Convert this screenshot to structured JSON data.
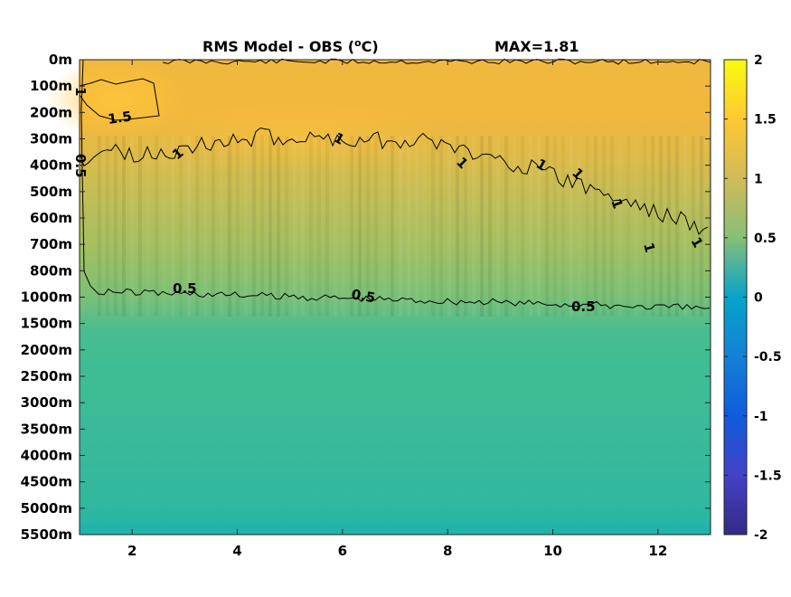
{
  "chart_data": {
    "type": "heatmap",
    "title": "RMS Model - OBS (",
    "title_degree": "o",
    "title_unit": "C)",
    "max_label": "MAX=1.81",
    "xlabel": "",
    "ylabel": "",
    "x_ticks": [
      "2",
      "4",
      "6",
      "8",
      "10",
      "12"
    ],
    "x_tick_values": [
      2,
      4,
      6,
      8,
      10,
      12
    ],
    "xlim": [
      1,
      13
    ],
    "y_ticks": [
      "0m",
      "100m",
      "200m",
      "300m",
      "400m",
      "500m",
      "600m",
      "700m",
      "800m",
      "1000m",
      "1500m",
      "2000m",
      "2500m",
      "3000m",
      "3500m",
      "4000m",
      "4500m",
      "5000m",
      "5500m"
    ],
    "colorbar": {
      "ticks": [
        "2",
        "1.5",
        "1",
        "0.5",
        "0",
        "-0.5",
        "-1",
        "-1.5",
        "-2"
      ],
      "tick_values": [
        2,
        1.5,
        1,
        0.5,
        0,
        -0.5,
        -1,
        -1.5,
        -2
      ],
      "range": [
        -2,
        2
      ],
      "colormap": "parula",
      "colors": [
        "#352a87",
        "#0f5cdd",
        "#1481d6",
        "#06a4ca",
        "#2eb7a4",
        "#87bf77",
        "#d1bb59",
        "#fec832",
        "#f9fb0e"
      ]
    },
    "depth_profile": [
      {
        "depth": "0m",
        "rms": 1.3
      },
      {
        "depth": "100m",
        "rms": 1.4
      },
      {
        "depth": "200m",
        "rms": 1.35
      },
      {
        "depth": "300m",
        "rms": 1.2
      },
      {
        "depth": "400m",
        "rms": 1.05
      },
      {
        "depth": "500m",
        "rms": 0.95
      },
      {
        "depth": "600m",
        "rms": 0.9
      },
      {
        "depth": "700m",
        "rms": 0.85
      },
      {
        "depth": "800m",
        "rms": 0.75
      },
      {
        "depth": "1000m",
        "rms": 0.55
      },
      {
        "depth": "1500m",
        "rms": 0.4
      },
      {
        "depth": "2000m",
        "rms": 0.35
      },
      {
        "depth": "2500m",
        "rms": 0.3
      },
      {
        "depth": "3000m",
        "rms": 0.28
      },
      {
        "depth": "3500m",
        "rms": 0.27
      },
      {
        "depth": "4000m",
        "rms": 0.27
      },
      {
        "depth": "4500m",
        "rms": 0.26
      },
      {
        "depth": "5000m",
        "rms": 0.24
      },
      {
        "depth": "5500m",
        "rms": 0.15
      }
    ],
    "contours": [
      {
        "level": 1.5,
        "label": "1.5"
      },
      {
        "level": 1,
        "label": "1"
      },
      {
        "level": 0.5,
        "label": "0.5"
      }
    ]
  }
}
